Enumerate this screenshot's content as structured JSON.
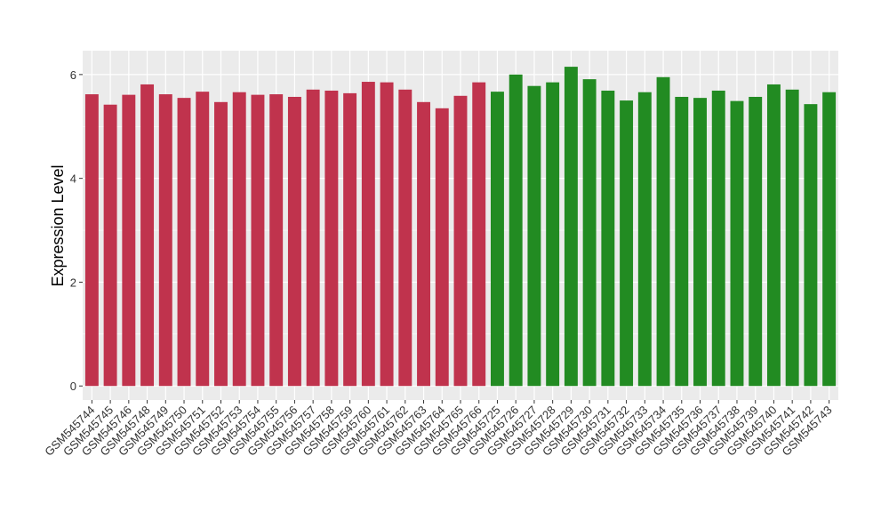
{
  "chart_data": {
    "type": "bar",
    "y_label": "Expression Level",
    "categories": [
      "GSM545744",
      "GSM545745",
      "GSM545746",
      "GSM545748",
      "GSM545749",
      "GSM545750",
      "GSM545751",
      "GSM545752",
      "GSM545753",
      "GSM545754",
      "GSM545755",
      "GSM545756",
      "GSM545757",
      "GSM545758",
      "GSM545759",
      "GSM545760",
      "GSM545761",
      "GSM545762",
      "GSM545763",
      "GSM545764",
      "GSM545765",
      "GSM545766",
      "GSM545725",
      "GSM545726",
      "GSM545727",
      "GSM545728",
      "GSM545729",
      "GSM545730",
      "GSM545731",
      "GSM545732",
      "GSM545733",
      "GSM545734",
      "GSM545735",
      "GSM545736",
      "GSM545737",
      "GSM545738",
      "GSM545739",
      "GSM545740",
      "GSM545741",
      "GSM545742",
      "GSM545743"
    ],
    "values": [
      5.62,
      5.42,
      5.61,
      5.81,
      5.62,
      5.55,
      5.67,
      5.47,
      5.66,
      5.61,
      5.62,
      5.57,
      5.71,
      5.69,
      5.64,
      5.86,
      5.85,
      5.71,
      5.47,
      5.35,
      5.59,
      5.85,
      5.67,
      6.0,
      5.78,
      5.85,
      6.15,
      5.91,
      5.69,
      5.5,
      5.66,
      5.95,
      5.57,
      5.55,
      5.69,
      5.49,
      5.57,
      5.81,
      5.71,
      5.43,
      5.66
    ],
    "colors": [
      "#c0334d",
      "#c0334d",
      "#c0334d",
      "#c0334d",
      "#c0334d",
      "#c0334d",
      "#c0334d",
      "#c0334d",
      "#c0334d",
      "#c0334d",
      "#c0334d",
      "#c0334d",
      "#c0334d",
      "#c0334d",
      "#c0334d",
      "#c0334d",
      "#c0334d",
      "#c0334d",
      "#c0334d",
      "#c0334d",
      "#c0334d",
      "#c0334d",
      "#228b22",
      "#228b22",
      "#228b22",
      "#228b22",
      "#228b22",
      "#228b22",
      "#228b22",
      "#228b22",
      "#228b22",
      "#228b22",
      "#228b22",
      "#228b22",
      "#228b22",
      "#228b22",
      "#228b22",
      "#228b22",
      "#228b22",
      "#228b22",
      "#228b22"
    ],
    "ylim": [
      -0.27,
      6.46
    ],
    "yticks": [
      0,
      2,
      4,
      6
    ],
    "grid": true
  }
}
